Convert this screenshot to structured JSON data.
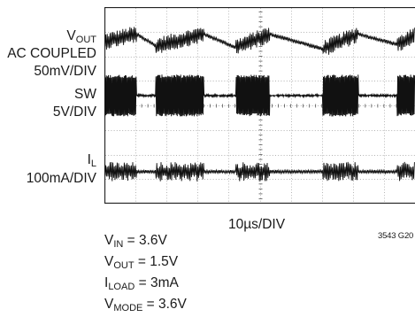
{
  "channels": [
    {
      "symbol": "V",
      "subscript": "OUT",
      "line2": "AC COUPLED",
      "scale": "50mV/DIV"
    },
    {
      "symbol": "SW",
      "subscript": "",
      "line2": "",
      "scale": "5V/DIV"
    },
    {
      "symbol": "I",
      "subscript": "L",
      "line2": "",
      "scale": "100mA/DIV"
    }
  ],
  "timebase": "10µs/DIV",
  "figure_number": "3543 G20",
  "conditions": [
    {
      "symbol": "V",
      "subscript": "IN",
      "value": " = 3.6V"
    },
    {
      "symbol": "V",
      "subscript": "OUT",
      "value": " = 1.5V"
    },
    {
      "symbol": "I",
      "subscript": "LOAD",
      "value": " = 3mA"
    },
    {
      "symbol": "V",
      "subscript": "MODE",
      "value": " = 3.6V"
    }
  ],
  "chart_data": {
    "type": "line",
    "x_divisions": 10,
    "y_divisions": 8,
    "x_unit": "µs",
    "x_per_div": 10,
    "burst_intervals": [
      [
        0,
        3.6
      ],
      [
        5.8,
        11.2
      ],
      [
        14.8,
        18.6
      ],
      [
        24.6,
        28.6
      ],
      [
        33.0,
        35.0
      ]
    ],
    "series": [
      {
        "name": "VOUT",
        "center_div": 6.6,
        "ramp_div": 0.3,
        "noise_div": 0.35,
        "wave": [
          [
            0,
            0.0
          ],
          [
            3.6,
            0.25
          ],
          [
            5.8,
            -0.15
          ],
          [
            11.2,
            0.25
          ],
          [
            14.8,
            -0.2
          ],
          [
            18.6,
            0.25
          ],
          [
            24.6,
            -0.25
          ],
          [
            28.6,
            0.25
          ],
          [
            33.0,
            -0.1
          ],
          [
            35.0,
            0.2
          ]
        ]
      },
      {
        "name": "SW",
        "center_div": 4.4,
        "idle_half": 0.05,
        "burst_half": 0.85
      },
      {
        "name": "IL",
        "center_div": 1.3,
        "idle_half": 0.07,
        "burst_half": 0.4
      }
    ]
  }
}
